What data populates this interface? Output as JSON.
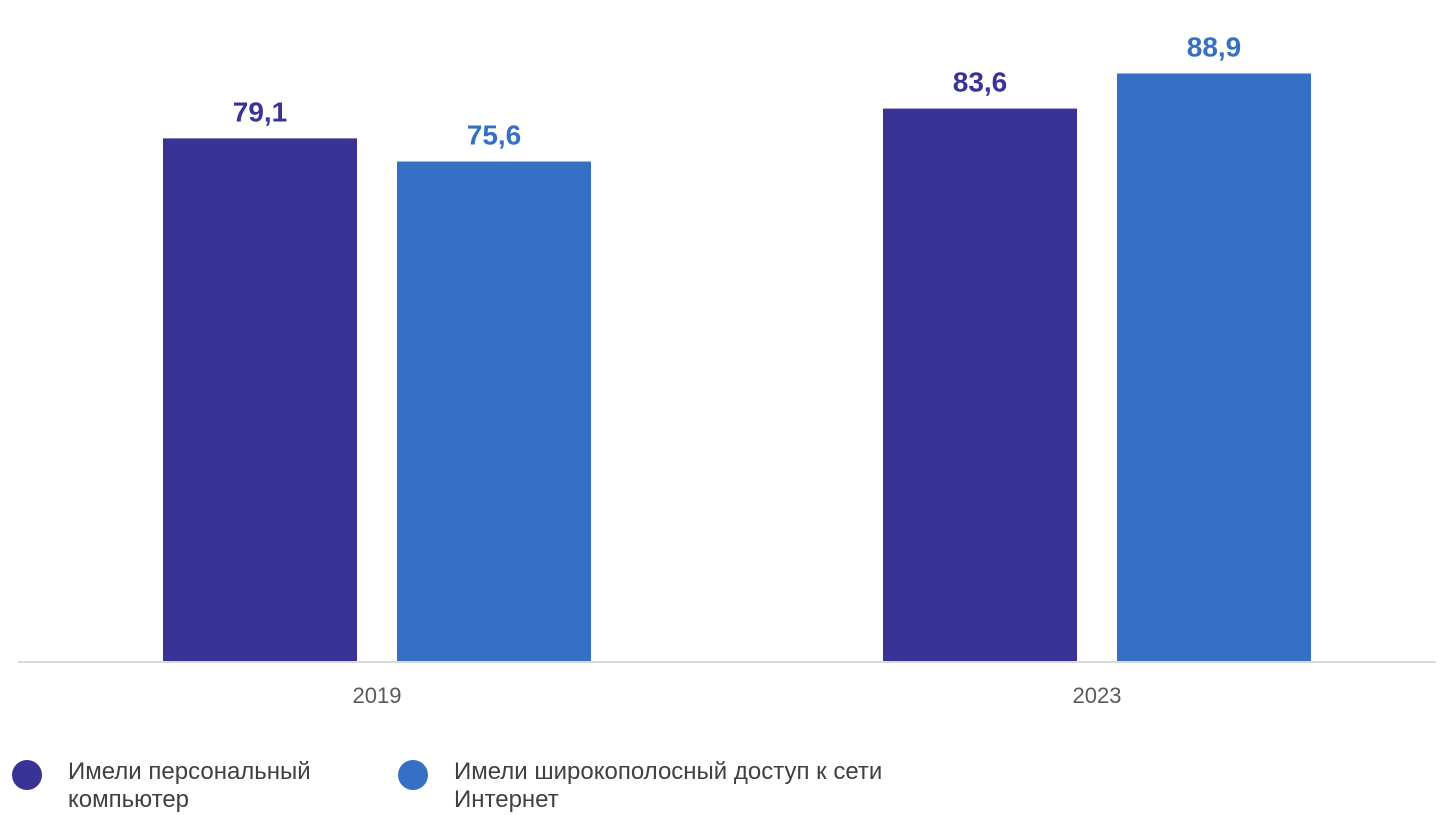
{
  "chart_data": {
    "type": "bar",
    "categories": [
      "2019",
      "2023"
    ],
    "series": [
      {
        "name": "Имели персональный компьютер",
        "color": "#3a3396",
        "values": [
          79.1,
          83.6
        ],
        "labels": [
          "79,1",
          "83,6"
        ]
      },
      {
        "name": "Имели широкополосный доступ к сети Интернет",
        "color": "#3670c4",
        "values": [
          75.6,
          88.9
        ],
        "labels": [
          "75,6",
          "88,9"
        ]
      }
    ],
    "ylim": [
      0,
      100
    ],
    "grid": false,
    "legend_position": "bottom-left"
  }
}
